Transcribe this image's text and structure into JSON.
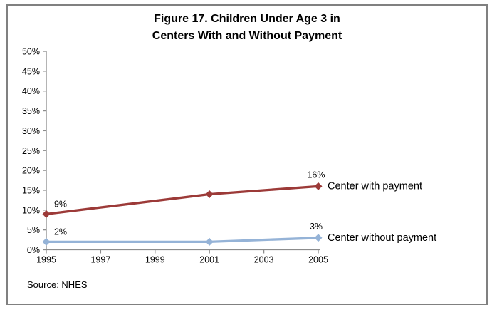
{
  "title": {
    "line1": "Figure 17. Children Under Age 3 in",
    "line2": "Centers With and Without Payment"
  },
  "source_note": "Source: NHES",
  "frame": {
    "border_color": "#808080",
    "background": "#ffffff"
  },
  "chart_data": {
    "type": "line",
    "title": "Figure 17. Children Under Age 3 in Centers With and Without Payment",
    "x": [
      1995,
      2001,
      2005
    ],
    "x_axis": {
      "min": 1995,
      "max": 2005,
      "tick_values": [
        1995,
        1997,
        1999,
        2001,
        2003,
        2005
      ],
      "tick_labels": [
        "1995",
        "1997",
        "1999",
        "2001",
        "2003",
        "2005"
      ]
    },
    "y_axis": {
      "min": 0,
      "max": 50,
      "step": 5,
      "tick_values": [
        0,
        5,
        10,
        15,
        20,
        25,
        30,
        35,
        40,
        45,
        50
      ],
      "tick_labels": [
        "0%",
        "5%",
        "10%",
        "15%",
        "20%",
        "25%",
        "30%",
        "35%",
        "40%",
        "45%",
        "50%"
      ]
    },
    "series": [
      {
        "name": "Center with payment",
        "color": "#9C3A38",
        "marker": "diamond",
        "values": [
          9,
          14,
          16
        ],
        "point_labels": [
          "9%",
          "",
          "16%"
        ]
      },
      {
        "name": "Center without payment",
        "color": "#95B3D7",
        "marker": "diamond",
        "values": [
          2,
          2,
          3
        ],
        "point_labels": [
          "2%",
          "",
          "3%"
        ]
      }
    ],
    "grid": false,
    "legend_position": "end-of-line",
    "axis_color": "#8C8C8C"
  }
}
